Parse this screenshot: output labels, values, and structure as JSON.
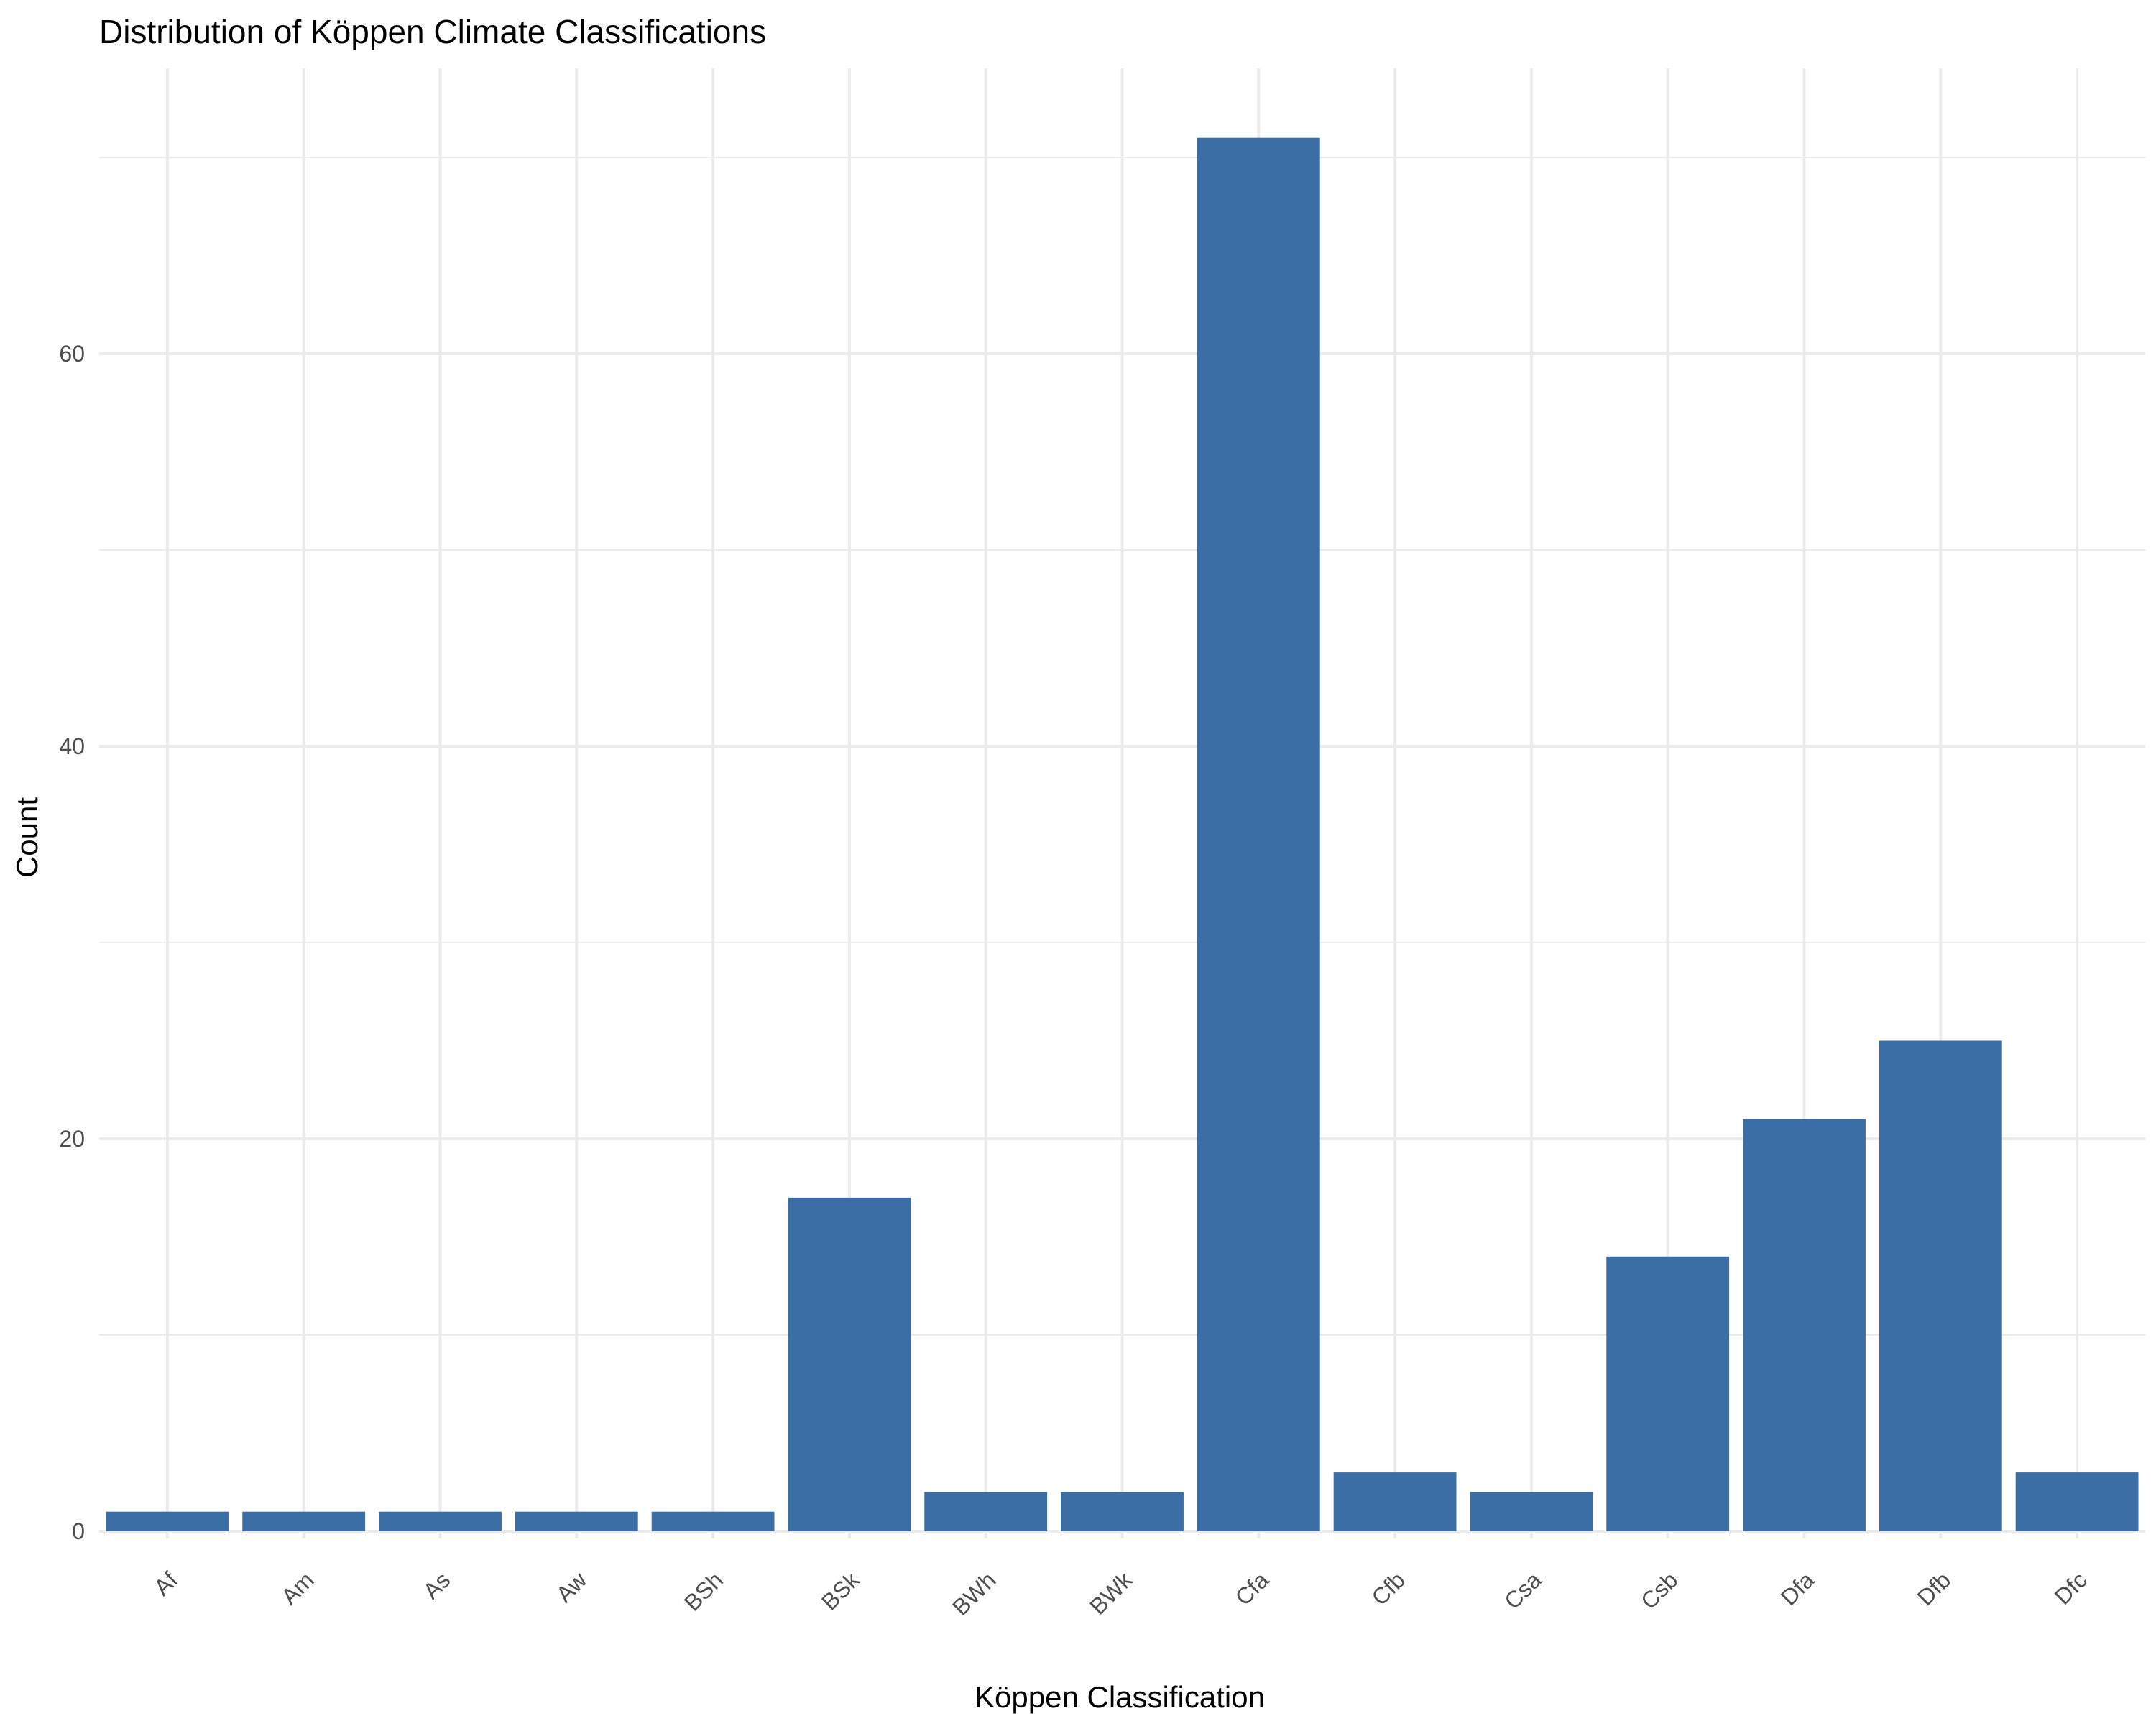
{
  "chart_data": {
    "type": "bar",
    "title": "Distribution of Köppen Climate Classifications",
    "xlabel": "Köppen Classification",
    "ylabel": "Count",
    "categories": [
      "Af",
      "Am",
      "As",
      "Aw",
      "BSh",
      "BSk",
      "BWh",
      "BWk",
      "Cfa",
      "Cfb",
      "Csa",
      "Csb",
      "Dfa",
      "Dfb",
      "Dfc"
    ],
    "values": [
      1,
      1,
      1,
      1,
      1,
      17,
      2,
      2,
      71,
      3,
      2,
      14,
      21,
      25,
      3
    ],
    "y_ticks": [
      0,
      20,
      40,
      60
    ],
    "ylim": [
      0,
      71
    ],
    "bar_color": "#3A6EA5",
    "grid": true,
    "legend": "none"
  }
}
